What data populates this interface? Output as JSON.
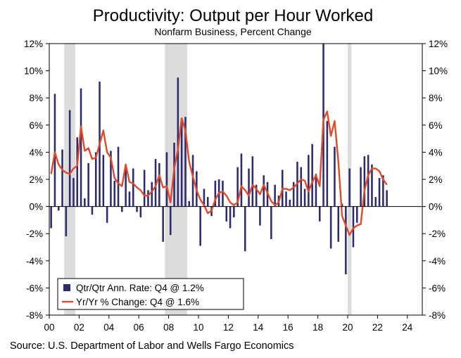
{
  "chart_data": {
    "type": "bar+line",
    "title": "Productivity: Output per Hour Worked",
    "subtitle": "Nonfarm Business, Percent Change",
    "source": "Source: U.S. Department of Labor and Wells Fargo Economics",
    "ylim": [
      -8,
      12
    ],
    "y_ticks": [
      12,
      10,
      8,
      6,
      4,
      2,
      0,
      -2,
      -4,
      -6,
      -8
    ],
    "y_tick_labels_left": [
      "12%",
      "10%",
      "8%",
      "6%",
      "4%",
      "2%",
      "0%",
      "-2%",
      "-4%",
      "-6%",
      "-8%"
    ],
    "y_tick_labels_right": [
      "12%",
      "10%",
      "8%",
      "6%",
      "4%",
      "2%",
      "0%",
      "-2%",
      "-4%",
      "-6%",
      "-8%"
    ],
    "x_range": [
      2000,
      2025
    ],
    "x_ticks": [
      2000,
      2002,
      2004,
      2006,
      2008,
      2010,
      2012,
      2014,
      2016,
      2018,
      2020,
      2022,
      2024
    ],
    "x_tick_labels": [
      "00",
      "02",
      "04",
      "06",
      "08",
      "10",
      "12",
      "14",
      "16",
      "18",
      "20",
      "22",
      "24"
    ],
    "recessions": [
      [
        2001.0,
        2001.75
      ],
      [
        2007.75,
        2009.25
      ],
      [
        2020.0,
        2020.25
      ]
    ],
    "legend": {
      "position": "bottom-left",
      "entries": [
        "Qtr/Qtr Ann. Rate: Q4 @ 1.2%",
        "Yr/Yr % Change: Q4 @ 1.6%"
      ]
    },
    "colors": {
      "bars": "#2e2a6e",
      "line": "#e04a2a",
      "recession": "#dcdcdc",
      "axis": "#000000"
    },
    "series": [
      {
        "name": "Qtr/Qtr Ann. Rate",
        "type": "bar",
        "start": "2000Q1",
        "values": [
          -1.6,
          8.3,
          -0.3,
          4.2,
          -2.2,
          7.1,
          2.1,
          5.1,
          8.7,
          0.6,
          3.2,
          -0.6,
          4.0,
          9.2,
          3.8,
          -1.2,
          4.1,
          1.9,
          4.4,
          -0.4,
          2.8,
          1.1,
          2.8,
          -0.4,
          -0.8,
          2.7,
          1.2,
          1.8,
          3.5,
          3.2,
          -2.6,
          4.0,
          -2.1,
          4.7,
          9.5,
          6.5,
          6.6,
          0.4,
          3.8,
          2.6,
          -2.9,
          1.3,
          0.7,
          -0.7,
          1.9,
          2.0,
          1.9,
          -1.1,
          -1.6,
          -0.8,
          2.9,
          3.9,
          -3.3,
          2.8,
          3.7,
          1.6,
          -1.4,
          2.3,
          1.8,
          -2.4,
          1.6,
          0.8,
          2.7,
          1.1,
          0.5,
          1.8,
          3.3,
          2.9,
          1.3,
          3.8,
          4.6,
          2.4,
          -1.1,
          12.0,
          6.3,
          -3.1,
          4.4,
          -2.6,
          0.2,
          -5.0,
          2.8,
          -3.0,
          -1.2,
          2.9,
          3.7,
          3.8,
          3.1,
          0.7,
          2.1,
          2.3,
          1.2
        ]
      },
      {
        "name": "Yr/Yr % Change",
        "type": "line",
        "start": "2000Q1",
        "values": [
          2.4,
          4.0,
          3.1,
          2.7,
          2.5,
          2.4,
          2.8,
          3.0,
          5.9,
          4.1,
          4.3,
          3.5,
          3.6,
          4.6,
          5.6,
          4.0,
          3.6,
          2.1,
          1.7,
          1.5,
          3.1,
          1.8,
          1.7,
          1.4,
          1.2,
          0.8,
          0.8,
          1.1,
          1.5,
          2.3,
          1.4,
          1.5,
          0.3,
          2.8,
          4.2,
          6.5,
          5.6,
          3.3,
          2.2,
          1.2,
          0.5,
          0.1,
          -0.5,
          -0.3,
          0.5,
          1.0,
          1.1,
          0.8,
          0.3,
          0.1,
          0.3,
          1.5,
          1.2,
          0.8,
          1.6,
          1.3,
          0.9,
          1.6,
          1.0,
          0.4,
          0.1,
          0.3,
          1.3,
          1.3,
          1.2,
          1.4,
          1.7,
          2.0,
          1.9,
          1.1,
          1.8,
          2.3,
          1.5,
          6.4,
          7.0,
          5.2,
          6.3,
          3.3,
          -0.7,
          -1.4,
          -2.1,
          -1.6,
          -1.4,
          -1.3,
          1.2,
          2.3,
          2.8,
          2.8,
          2.6,
          2.0,
          1.6
        ]
      }
    ]
  }
}
